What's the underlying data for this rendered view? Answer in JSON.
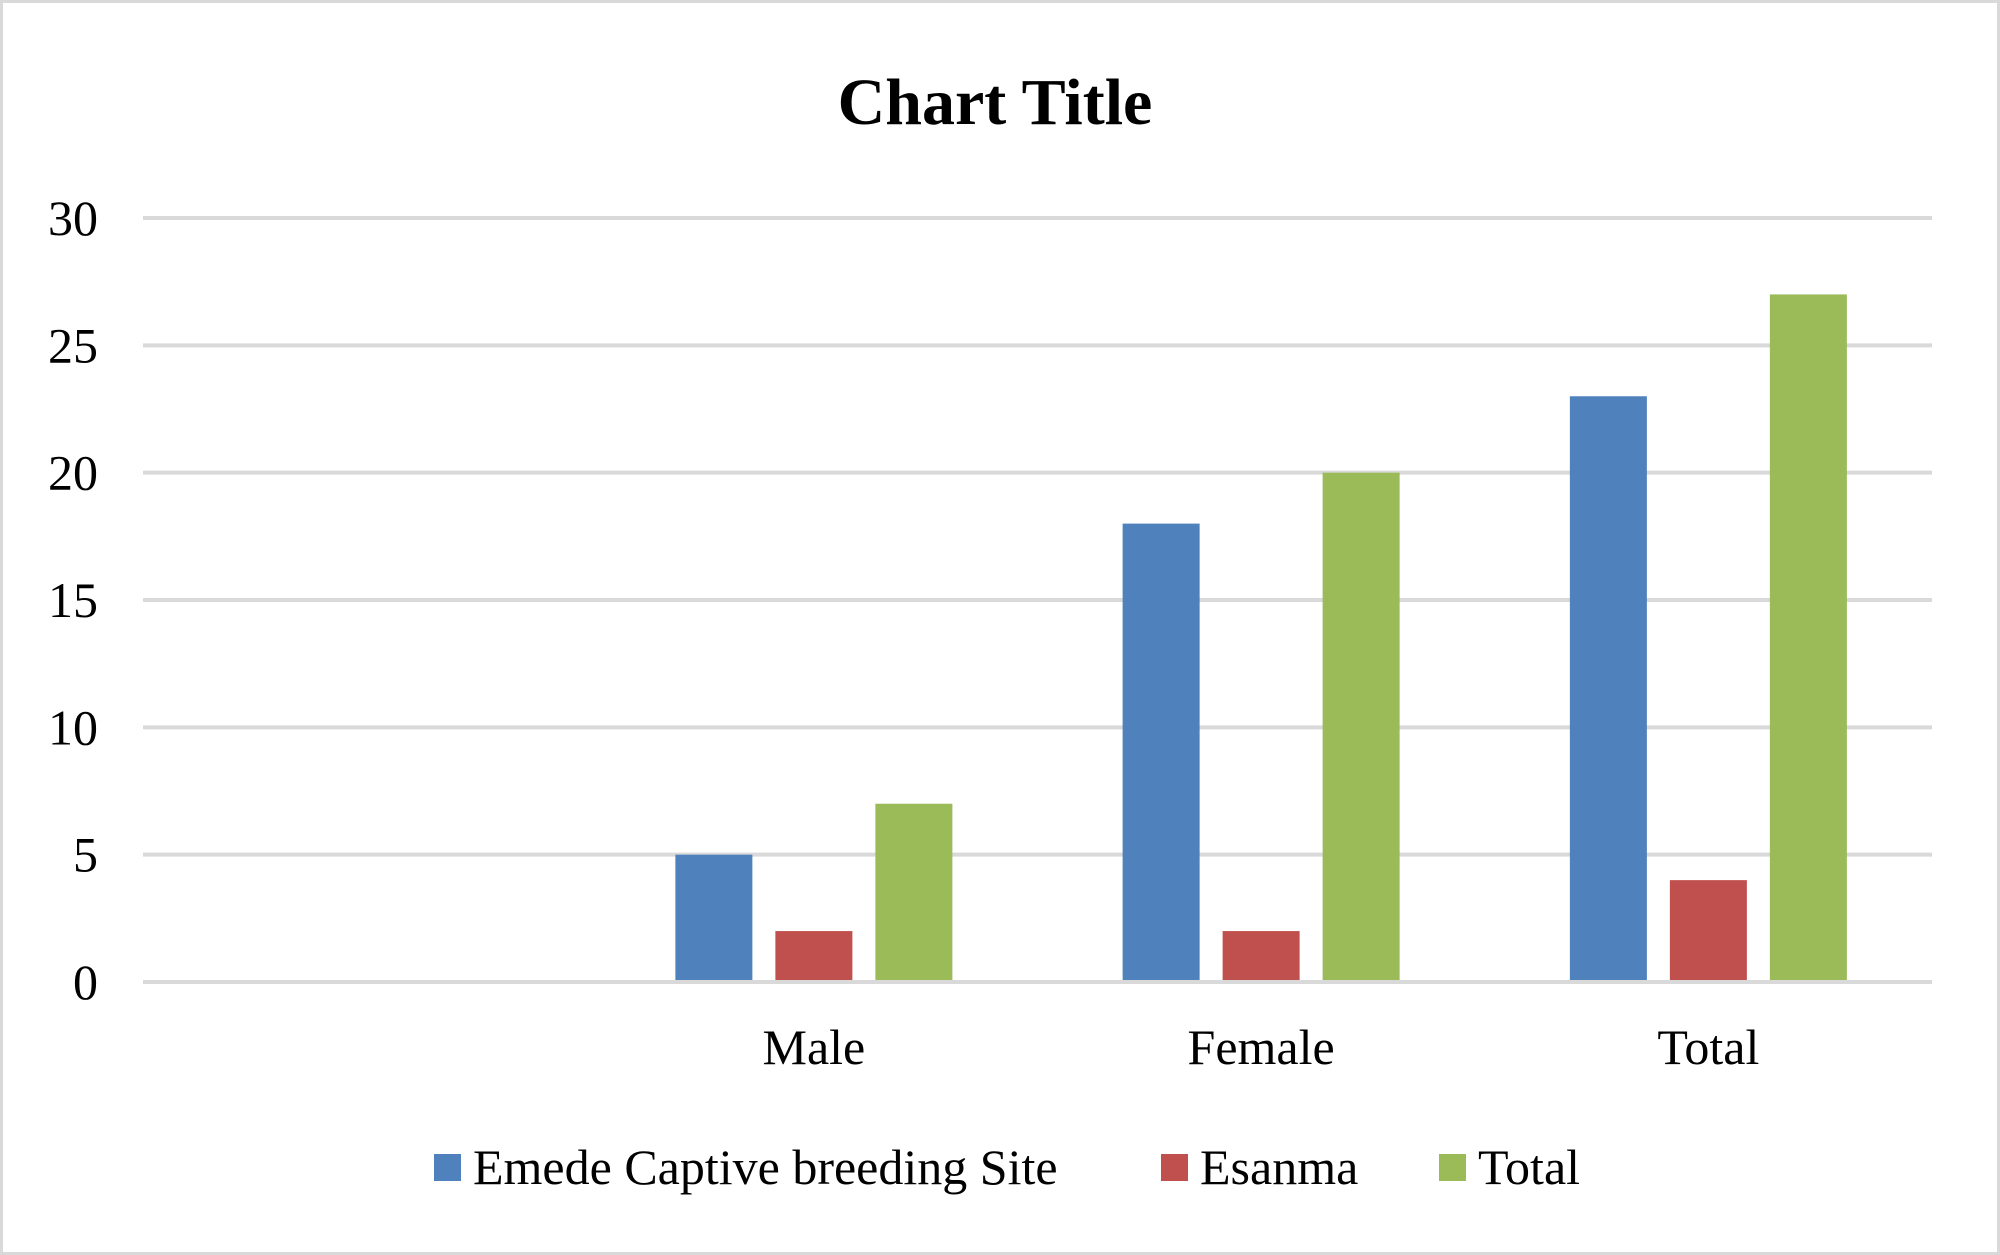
{
  "chart_data": {
    "type": "bar",
    "title": "Chart Title",
    "categories": [
      "",
      "Male",
      "Female",
      "Total"
    ],
    "series": [
      {
        "name": "Emede Captive breeding Site",
        "color": "#4f81bd",
        "values": [
          null,
          5,
          18,
          23
        ]
      },
      {
        "name": "Esanma",
        "color": "#c0504d",
        "values": [
          null,
          2,
          2,
          4
        ]
      },
      {
        "name": "Total",
        "color": "#9bbb59",
        "values": [
          null,
          7,
          20,
          27
        ]
      }
    ],
    "ylim": [
      0,
      30
    ],
    "yticks": [
      0,
      5,
      10,
      15,
      20,
      25,
      30
    ],
    "grid": true,
    "gridColor": "#d9d9d9",
    "legend": "bottom",
    "xlabel": "",
    "ylabel": ""
  }
}
